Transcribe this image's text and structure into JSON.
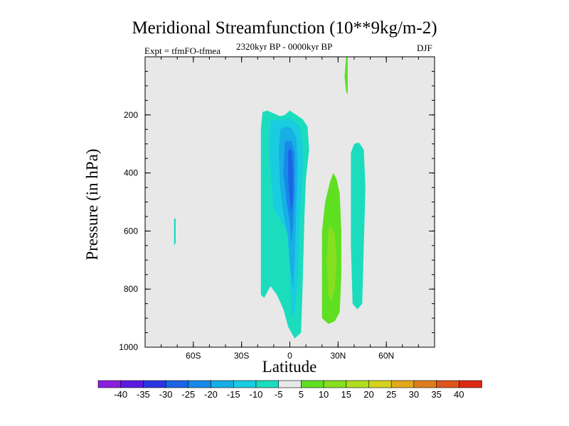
{
  "chart_data": {
    "type": "heatmap",
    "title": "Meridional Streamfunction (10**9kg/m-2)",
    "left_subtitle": "Expt = tfmFO-tfmea",
    "center_subtitle": "2320kyr BP - 0000kyr BP",
    "right_subtitle": "DJF",
    "xlabel": "Latitude",
    "ylabel": "Pressure (in hPa)",
    "xlim": [
      -90,
      90
    ],
    "ylim": [
      0,
      1000
    ],
    "x_ticks": [
      {
        "value": -60,
        "label": "60S"
      },
      {
        "value": -30,
        "label": "30S"
      },
      {
        "value": 0,
        "label": "0"
      },
      {
        "value": 30,
        "label": "30N"
      },
      {
        "value": 60,
        "label": "60N"
      }
    ],
    "y_ticks": [
      {
        "value": 200,
        "label": "200"
      },
      {
        "value": 400,
        "label": "400"
      },
      {
        "value": 600,
        "label": "600"
      },
      {
        "value": 800,
        "label": "800"
      },
      {
        "value": 1000,
        "label": "1000"
      }
    ],
    "colorbar": {
      "labels": [
        "-40",
        "-35",
        "-30",
        "-25",
        "-20",
        "-15",
        "-10",
        "-5",
        "5",
        "10",
        "15",
        "20",
        "25",
        "30",
        "35",
        "40"
      ],
      "colors": [
        "#8a1fe0",
        "#5a1ce0",
        "#2b35e0",
        "#1c63e6",
        "#1789e8",
        "#18aee6",
        "#19cce0",
        "#1cdcbe",
        "#e8e8e8",
        "#5ee021",
        "#86df20",
        "#b0dd1f",
        "#d4d21c",
        "#e3a91c",
        "#e07d1c",
        "#df531c",
        "#dc2a12"
      ]
    },
    "contour_regions": [
      {
        "name": "neg-5-main",
        "color_index": 7,
        "points": [
          [
            -17,
            190
          ],
          [
            -14,
            185
          ],
          [
            -10,
            195
          ],
          [
            -6,
            205
          ],
          [
            -3,
            200
          ],
          [
            0,
            185
          ],
          [
            4,
            200
          ],
          [
            8,
            215
          ],
          [
            11,
            240
          ],
          [
            12,
            320
          ],
          [
            10,
            420
          ],
          [
            9,
            560
          ],
          [
            8,
            780
          ],
          [
            7,
            950
          ],
          [
            3,
            970
          ],
          [
            -1,
            930
          ],
          [
            -4,
            870
          ],
          [
            -8,
            820
          ],
          [
            -12,
            790
          ],
          [
            -16,
            830
          ],
          [
            -18,
            820
          ],
          [
            -18,
            600
          ],
          [
            -18,
            400
          ],
          [
            -18,
            250
          ]
        ]
      },
      {
        "name": "neg-10",
        "color_index": 6,
        "points": [
          [
            -12,
            220
          ],
          [
            -8,
            215
          ],
          [
            -4,
            220
          ],
          [
            -1,
            210
          ],
          [
            3,
            225
          ],
          [
            6,
            240
          ],
          [
            8,
            300
          ],
          [
            8,
            400
          ],
          [
            6,
            560
          ],
          [
            5,
            760
          ],
          [
            3,
            880
          ],
          [
            1,
            900
          ],
          [
            0,
            700
          ],
          [
            -2,
            600
          ],
          [
            -6,
            560
          ],
          [
            -10,
            520
          ],
          [
            -12,
            400
          ],
          [
            -13,
            300
          ]
        ]
      },
      {
        "name": "neg-15",
        "color_index": 5,
        "points": [
          [
            -6,
            250
          ],
          [
            -3,
            240
          ],
          [
            1,
            245
          ],
          [
            4,
            280
          ],
          [
            5,
            380
          ],
          [
            4,
            520
          ],
          [
            3,
            700
          ],
          [
            2,
            800
          ],
          [
            0,
            720
          ],
          [
            -1,
            620
          ],
          [
            -4,
            540
          ],
          [
            -6,
            450
          ],
          [
            -7,
            330
          ]
        ]
      },
      {
        "name": "neg-20",
        "color_index": 4,
        "points": [
          [
            -3,
            290
          ],
          [
            1,
            290
          ],
          [
            3,
            330
          ],
          [
            3,
            460
          ],
          [
            2,
            580
          ],
          [
            1,
            640
          ],
          [
            0,
            570
          ],
          [
            -2,
            500
          ],
          [
            -4,
            400
          ]
        ]
      },
      {
        "name": "neg-25",
        "color_index": 3,
        "points": [
          [
            -1,
            320
          ],
          [
            1,
            320
          ],
          [
            2,
            380
          ],
          [
            2,
            480
          ],
          [
            1,
            540
          ],
          [
            0,
            500
          ],
          [
            -1,
            420
          ]
        ]
      },
      {
        "name": "neg-5-east",
        "color_index": 7,
        "points": [
          [
            40,
            300
          ],
          [
            43,
            295
          ],
          [
            46,
            320
          ],
          [
            47,
            450
          ],
          [
            46,
            650
          ],
          [
            45,
            850
          ],
          [
            42,
            870
          ],
          [
            39,
            850
          ],
          [
            38,
            650
          ],
          [
            38,
            450
          ],
          [
            38,
            330
          ]
        ]
      },
      {
        "name": "neg-5-west",
        "color_index": 7,
        "points": [
          [
            -72,
            560
          ],
          [
            -71,
            555
          ],
          [
            -71,
            640
          ],
          [
            -72,
            650
          ]
        ]
      },
      {
        "name": "pos-5",
        "color_index": 9,
        "points": [
          [
            27,
            400
          ],
          [
            29,
            420
          ],
          [
            31,
            470
          ],
          [
            32,
            600
          ],
          [
            32,
            750
          ],
          [
            31,
            880
          ],
          [
            28,
            910
          ],
          [
            24,
            920
          ],
          [
            20,
            900
          ],
          [
            20,
            750
          ],
          [
            20,
            600
          ],
          [
            22,
            500
          ],
          [
            25,
            430
          ]
        ]
      },
      {
        "name": "pos-10",
        "color_index": 10,
        "points": [
          [
            25,
            580
          ],
          [
            28,
            610
          ],
          [
            29,
            700
          ],
          [
            28,
            800
          ],
          [
            26,
            840
          ],
          [
            24,
            820
          ],
          [
            23,
            700
          ],
          [
            24,
            600
          ]
        ]
      },
      {
        "name": "pos-5-top",
        "color_index": 9,
        "points": [
          [
            35,
            0
          ],
          [
            36,
            0
          ],
          [
            36,
            70
          ],
          [
            36,
            130
          ],
          [
            35,
            120
          ],
          [
            34,
            70
          ]
        ]
      }
    ]
  }
}
